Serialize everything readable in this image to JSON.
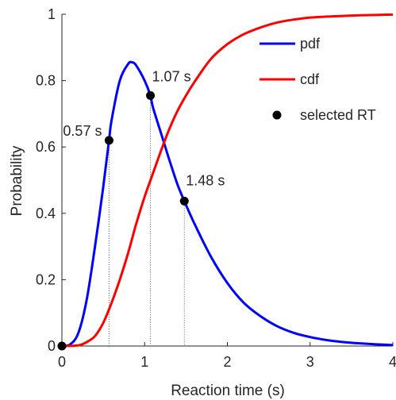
{
  "chart_data": {
    "type": "line",
    "title": "",
    "xlabel": "Reaction time (s)",
    "ylabel": "Probability",
    "xlim": [
      0,
      4
    ],
    "ylim": [
      0,
      1
    ],
    "x_ticks": [
      0,
      1,
      2,
      3,
      4
    ],
    "y_ticks": [
      0,
      0.2,
      0.4,
      0.6,
      0.8,
      1
    ],
    "x_tick_labels": [
      "0",
      "1",
      "2",
      "3",
      "4"
    ],
    "y_tick_labels": [
      "0",
      "0.2",
      "0.4",
      "0.6",
      "0.8",
      "1"
    ],
    "grid": false,
    "legend_position": "top-right",
    "series": [
      {
        "name": "pdf",
        "color": "#0000ff",
        "x": [
          0,
          0.1,
          0.2,
          0.3,
          0.4,
          0.5,
          0.57,
          0.6,
          0.7,
          0.8,
          0.85,
          0.9,
          1.0,
          1.07,
          1.1,
          1.2,
          1.3,
          1.4,
          1.48,
          1.6,
          1.8,
          2.0,
          2.2,
          2.4,
          2.6,
          2.8,
          3.0,
          3.2,
          3.4,
          3.6,
          3.8,
          4.0
        ],
        "y": [
          0,
          0.005,
          0.04,
          0.14,
          0.3,
          0.48,
          0.62,
          0.68,
          0.8,
          0.85,
          0.855,
          0.845,
          0.8,
          0.755,
          0.72,
          0.64,
          0.56,
          0.485,
          0.437,
          0.37,
          0.27,
          0.19,
          0.13,
          0.09,
          0.06,
          0.04,
          0.027,
          0.018,
          0.012,
          0.008,
          0.005,
          0.003
        ]
      },
      {
        "name": "cdf",
        "color": "#ff0000",
        "x": [
          0,
          0.2,
          0.3,
          0.4,
          0.5,
          0.6,
          0.7,
          0.8,
          0.9,
          1.0,
          1.1,
          1.2,
          1.3,
          1.4,
          1.5,
          1.6,
          1.8,
          2.0,
          2.2,
          2.4,
          2.6,
          2.8,
          3.0,
          3.2,
          3.4,
          3.6,
          3.8,
          4.0
        ],
        "y": [
          0,
          0.002,
          0.012,
          0.03,
          0.07,
          0.13,
          0.2,
          0.28,
          0.37,
          0.45,
          0.52,
          0.59,
          0.655,
          0.71,
          0.755,
          0.795,
          0.865,
          0.91,
          0.94,
          0.96,
          0.975,
          0.984,
          0.99,
          0.993,
          0.995,
          0.997,
          0.998,
          0.999
        ]
      }
    ],
    "selected_rt": {
      "name": "selected RT",
      "color": "#000000",
      "points": [
        {
          "x": 0,
          "y": 0,
          "label": ""
        },
        {
          "x": 0.57,
          "y": 0.62,
          "label": "0.57 s"
        },
        {
          "x": 1.07,
          "y": 0.755,
          "label": "1.07 s"
        },
        {
          "x": 1.48,
          "y": 0.437,
          "label": "1.48 s"
        }
      ]
    },
    "dotted_reference_lines": [
      {
        "x": 0.57,
        "y": 0.62
      },
      {
        "x": 1.07,
        "y": 0.755
      },
      {
        "x": 1.48,
        "y": 0.437
      }
    ]
  }
}
